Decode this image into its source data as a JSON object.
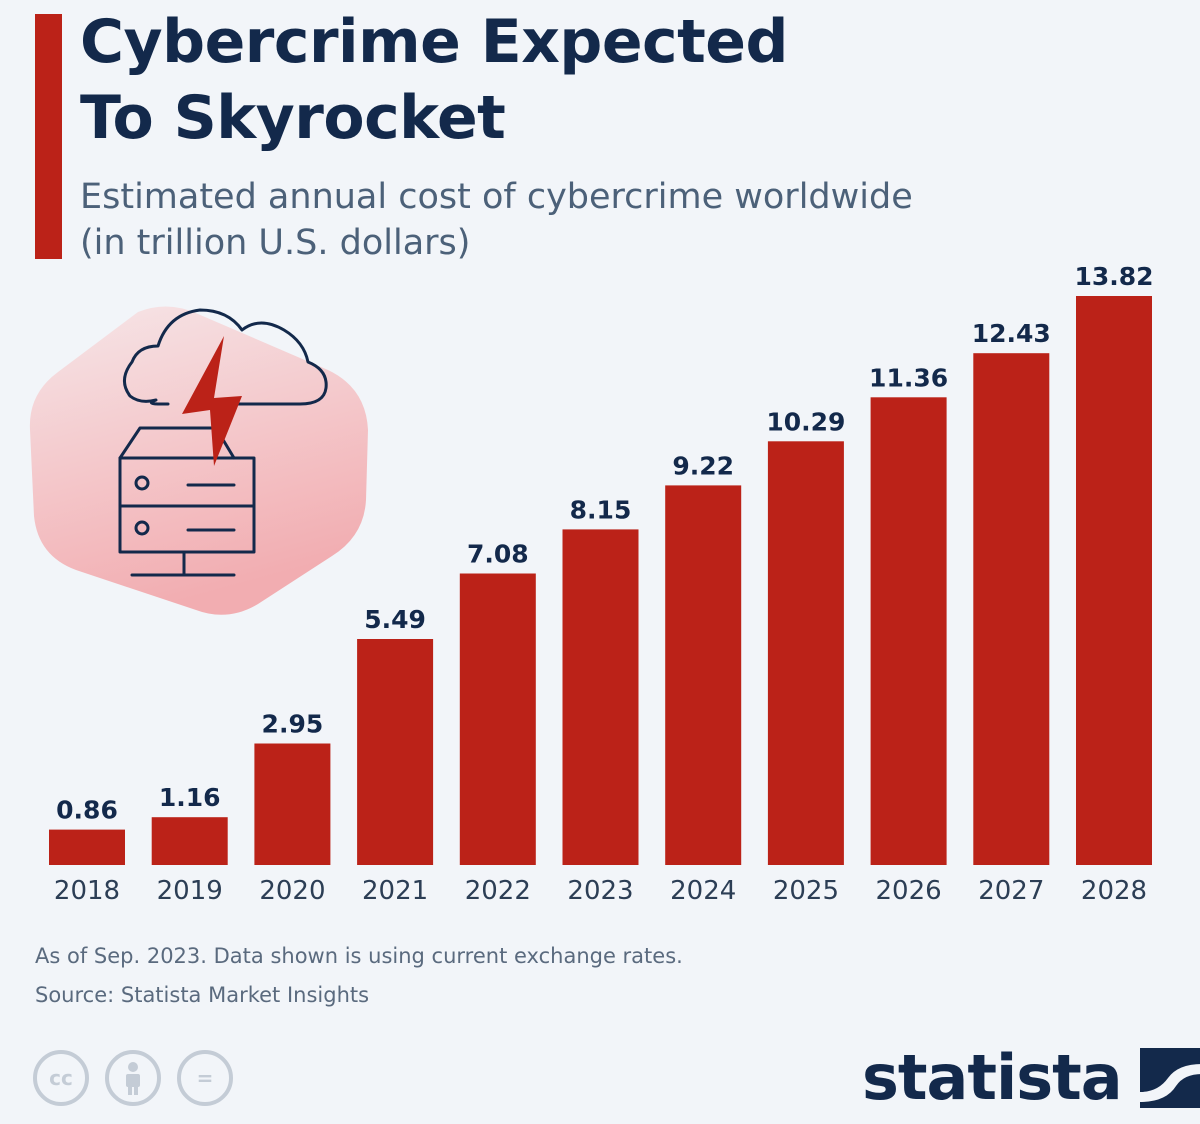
{
  "header": {
    "title_line1": "Cybercrime Expected",
    "title_line2": "To Skyrocket",
    "subtitle_line1": "Estimated annual cost of cybercrime worldwide",
    "subtitle_line2": "(in trillion U.S. dollars)"
  },
  "colors": {
    "bar": "#bb2218",
    "title": "#13294b",
    "subtitle": "#4c6179",
    "background": "#f2f5f9"
  },
  "illustration": {
    "icon": "cloud-server-lightning-icon"
  },
  "chart_data": {
    "type": "bar",
    "title": "Cybercrime Expected To Skyrocket",
    "subtitle": "Estimated annual cost of cybercrime worldwide (in trillion U.S. dollars)",
    "categories": [
      "2018",
      "2019",
      "2020",
      "2021",
      "2022",
      "2023",
      "2024",
      "2025",
      "2026",
      "2027",
      "2028"
    ],
    "values": [
      0.86,
      1.16,
      2.95,
      5.49,
      7.08,
      8.15,
      9.22,
      10.29,
      11.36,
      12.43,
      13.82
    ],
    "data_labels": [
      "0.86",
      "1.16",
      "2.95",
      "5.49",
      "7.08",
      "8.15",
      "9.22",
      "10.29",
      "11.36",
      "12.43",
      "13.82"
    ],
    "xlabel": "",
    "ylabel": "",
    "ylim": [
      0,
      13.82
    ],
    "grid": false,
    "legend": "none"
  },
  "footer": {
    "note": "As of Sep. 2023. Data shown is using current exchange rates.",
    "source": "Source: Statista Market Insights",
    "license_icons": [
      "cc-icon",
      "attribution-icon",
      "no-derivatives-icon"
    ],
    "cc_text": "cc",
    "nd_text": "=",
    "brand": "statista",
    "brand_icon": "statista-logo-icon"
  }
}
